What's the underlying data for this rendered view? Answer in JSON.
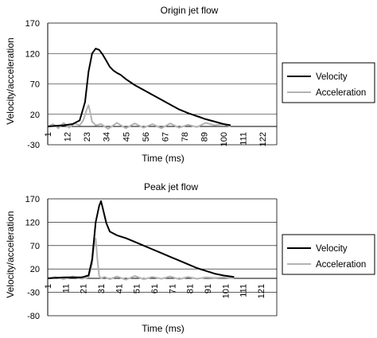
{
  "chart_data": [
    {
      "type": "line",
      "title": "Origin jet flow",
      "xlabel": "Time (ms)",
      "ylabel": "Velocity/acceleration",
      "ylim": [
        -30,
        170
      ],
      "yticks": [
        "170",
        "120",
        "70",
        "20",
        "-30"
      ],
      "xticks": [
        "1",
        "12",
        "23",
        "34",
        "45",
        "56",
        "67",
        "78",
        "89",
        "100",
        "111",
        "122"
      ],
      "xlim": [
        1,
        130
      ],
      "grid": "horizontal",
      "legend_position": "right",
      "series": [
        {
          "name": "Velocity",
          "color": "#000000",
          "x": [
            1,
            5,
            10,
            15,
            19,
            22,
            24,
            26,
            28,
            30,
            32,
            34,
            36,
            38,
            40,
            42,
            45,
            48,
            50,
            55,
            60,
            65,
            70,
            75,
            80,
            85,
            90,
            95,
            100,
            104
          ],
          "y": [
            0,
            1,
            2,
            4,
            10,
            40,
            90,
            120,
            128,
            126,
            118,
            108,
            98,
            92,
            88,
            85,
            78,
            72,
            68,
            60,
            52,
            44,
            36,
            28,
            22,
            17,
            12,
            8,
            4,
            2
          ]
        },
        {
          "name": "Acceleration",
          "color": "#b3b3b3",
          "x": [
            1,
            4,
            7,
            10,
            13,
            16,
            19,
            21,
            23,
            24,
            25,
            26,
            28,
            31,
            35,
            40,
            45,
            50,
            55,
            60,
            65,
            70,
            75,
            80,
            85,
            90,
            95,
            100,
            104
          ],
          "y": [
            0,
            4,
            -3,
            6,
            -2,
            5,
            2,
            10,
            28,
            35,
            22,
            8,
            2,
            4,
            -4,
            6,
            -3,
            5,
            -2,
            4,
            -3,
            5,
            -2,
            3,
            -1,
            6,
            2,
            4,
            0
          ]
        }
      ]
    },
    {
      "type": "line",
      "title": "Peak jet flow",
      "xlabel": "Time (ms)",
      "ylabel": "Velocity/acceleration",
      "ylim": [
        -80,
        170
      ],
      "yticks": [
        "170",
        "120",
        "70",
        "20",
        "-30",
        "-80"
      ],
      "xticks": [
        "1",
        "11",
        "21",
        "31",
        "41",
        "51",
        "61",
        "71",
        "81",
        "91",
        "101",
        "111",
        "121"
      ],
      "xlim": [
        1,
        130
      ],
      "grid": "horizontal",
      "legend_position": "right",
      "series": [
        {
          "name": "Velocity",
          "color": "#000000",
          "x": [
            1,
            10,
            20,
            24,
            26,
            28,
            30,
            31,
            32,
            34,
            36,
            40,
            45,
            50,
            55,
            60,
            65,
            70,
            75,
            80,
            85,
            90,
            95,
            100,
            106
          ],
          "y": [
            0,
            2,
            2,
            6,
            40,
            120,
            155,
            165,
            150,
            118,
            100,
            92,
            86,
            78,
            70,
            62,
            54,
            46,
            38,
            30,
            22,
            16,
            10,
            6,
            3
          ]
        },
        {
          "name": "Acceleration",
          "color": "#b3b3b3",
          "x": [
            1,
            5,
            10,
            15,
            20,
            24,
            26,
            27,
            28,
            29,
            30,
            31,
            33,
            36,
            40,
            45,
            50,
            55,
            60,
            65,
            70,
            75,
            80,
            85,
            90,
            95,
            100,
            106
          ],
          "y": [
            0,
            3,
            -2,
            4,
            -1,
            2,
            30,
            68,
            85,
            40,
            5,
            0,
            3,
            -2,
            4,
            -3,
            5,
            -2,
            3,
            -1,
            4,
            -2,
            3,
            -1,
            2,
            1,
            2,
            0
          ]
        }
      ]
    }
  ]
}
